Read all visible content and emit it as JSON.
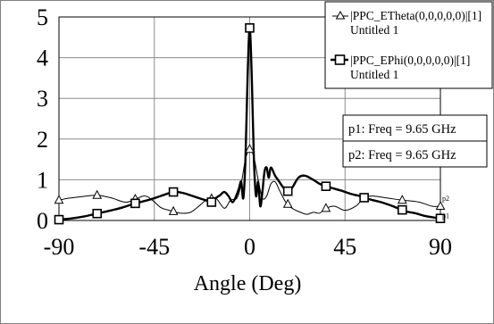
{
  "chart_data": {
    "type": "line",
    "xlabel": "Angle (Deg)",
    "ylabel": "",
    "xlim": [
      -90,
      90
    ],
    "ylim": [
      0,
      5
    ],
    "xticks": [
      -90,
      -45,
      0,
      45,
      90
    ],
    "yticks": [
      0,
      1,
      2,
      3,
      4,
      5
    ],
    "grid": true,
    "legend_position": "top-right",
    "series": [
      {
        "name": "|PPC_ETheta(0,0,0,0,0)|[1]",
        "subtitle": "Untitled 1",
        "color": "#000000",
        "line_width": 1,
        "marker": "triangle",
        "points": [
          [
            -90,
            0.5
          ],
          [
            -85,
            0.55
          ],
          [
            -80,
            0.58
          ],
          [
            -72,
            0.62
          ],
          [
            -65,
            0.55
          ],
          [
            -58,
            0.45
          ],
          [
            -50,
            0.6
          ],
          [
            -46,
            0.5
          ],
          [
            -42,
            0.32
          ],
          [
            -38,
            0.25
          ],
          [
            -33,
            0.18
          ],
          [
            -28,
            0.2
          ],
          [
            -24,
            0.35
          ],
          [
            -20,
            0.52
          ],
          [
            -16,
            0.55
          ],
          [
            -12,
            0.3
          ],
          [
            -9,
            0.5
          ],
          [
            -6,
            0.55
          ],
          [
            -4,
            0.9
          ],
          [
            -2,
            1.5
          ],
          [
            0,
            1.75
          ],
          [
            2,
            1.55
          ],
          [
            4,
            1.0
          ],
          [
            6,
            0.55
          ],
          [
            8,
            0.6
          ],
          [
            10,
            0.9
          ],
          [
            12,
            0.95
          ],
          [
            14,
            0.75
          ],
          [
            17,
            0.45
          ],
          [
            20,
            0.3
          ],
          [
            24,
            0.2
          ],
          [
            27,
            0.15
          ],
          [
            30,
            0.2
          ],
          [
            33,
            0.18
          ],
          [
            36,
            0.3
          ],
          [
            40,
            0.35
          ],
          [
            45,
            0.25
          ],
          [
            50,
            0.35
          ],
          [
            54,
            0.55
          ],
          [
            58,
            0.6
          ],
          [
            65,
            0.55
          ],
          [
            72,
            0.5
          ],
          [
            80,
            0.45
          ],
          [
            86,
            0.35
          ],
          [
            90,
            0.35
          ]
        ],
        "marker_x": [
          -90,
          -72,
          -54,
          -36,
          -18,
          0,
          18,
          36,
          54,
          72,
          90
        ]
      },
      {
        "name": "|PPC_EPhi(0,0,0,0,0)|[1]",
        "subtitle": "Untitled 1",
        "color": "#000000",
        "line_width": 2.4,
        "marker": "square",
        "points": [
          [
            -90,
            0.02
          ],
          [
            -84,
            0.05
          ],
          [
            -78,
            0.1
          ],
          [
            -72,
            0.17
          ],
          [
            -66,
            0.24
          ],
          [
            -60,
            0.32
          ],
          [
            -54,
            0.42
          ],
          [
            -48,
            0.5
          ],
          [
            -42,
            0.6
          ],
          [
            -36,
            0.7
          ],
          [
            -32,
            0.68
          ],
          [
            -28,
            0.62
          ],
          [
            -24,
            0.55
          ],
          [
            -21,
            0.5
          ],
          [
            -18,
            0.45
          ],
          [
            -16,
            0.55
          ],
          [
            -14,
            0.62
          ],
          [
            -12,
            0.7
          ],
          [
            -10,
            0.6
          ],
          [
            -8,
            0.45
          ],
          [
            -6,
            0.65
          ],
          [
            -5,
            0.8
          ],
          [
            -4,
            0.95
          ],
          [
            -3,
            0.55
          ],
          [
            -2,
            1.5
          ],
          [
            -1,
            3.5
          ],
          [
            0,
            4.73
          ],
          [
            1,
            3.5
          ],
          [
            2,
            1.5
          ],
          [
            3,
            0.6
          ],
          [
            4,
            0.95
          ],
          [
            5,
            0.35
          ],
          [
            6,
            0.7
          ],
          [
            7,
            1.2
          ],
          [
            8,
            1.3
          ],
          [
            9,
            1.05
          ],
          [
            10,
            1.3
          ],
          [
            12,
            1.1
          ],
          [
            14,
            0.95
          ],
          [
            16,
            0.8
          ],
          [
            18,
            0.72
          ],
          [
            20,
            0.8
          ],
          [
            23,
            1.05
          ],
          [
            26,
            1.1
          ],
          [
            30,
            1.0
          ],
          [
            33,
            0.9
          ],
          [
            36,
            0.84
          ],
          [
            40,
            0.78
          ],
          [
            44,
            0.72
          ],
          [
            48,
            0.65
          ],
          [
            52,
            0.6
          ],
          [
            54,
            0.56
          ],
          [
            58,
            0.5
          ],
          [
            62,
            0.45
          ],
          [
            66,
            0.38
          ],
          [
            70,
            0.3
          ],
          [
            74,
            0.22
          ],
          [
            78,
            0.18
          ],
          [
            82,
            0.12
          ],
          [
            86,
            0.08
          ],
          [
            90,
            0.05
          ]
        ],
        "marker_x": [
          -90,
          -72,
          -54,
          -36,
          -18,
          0,
          18,
          36,
          54,
          72,
          90
        ]
      }
    ],
    "annotations": [
      {
        "label": "p1: Freq = 9.65 GHz"
      },
      {
        "label": "p2: Freq = 9.65 GHz"
      }
    ],
    "end_labels": [
      "p2",
      "p1"
    ]
  }
}
